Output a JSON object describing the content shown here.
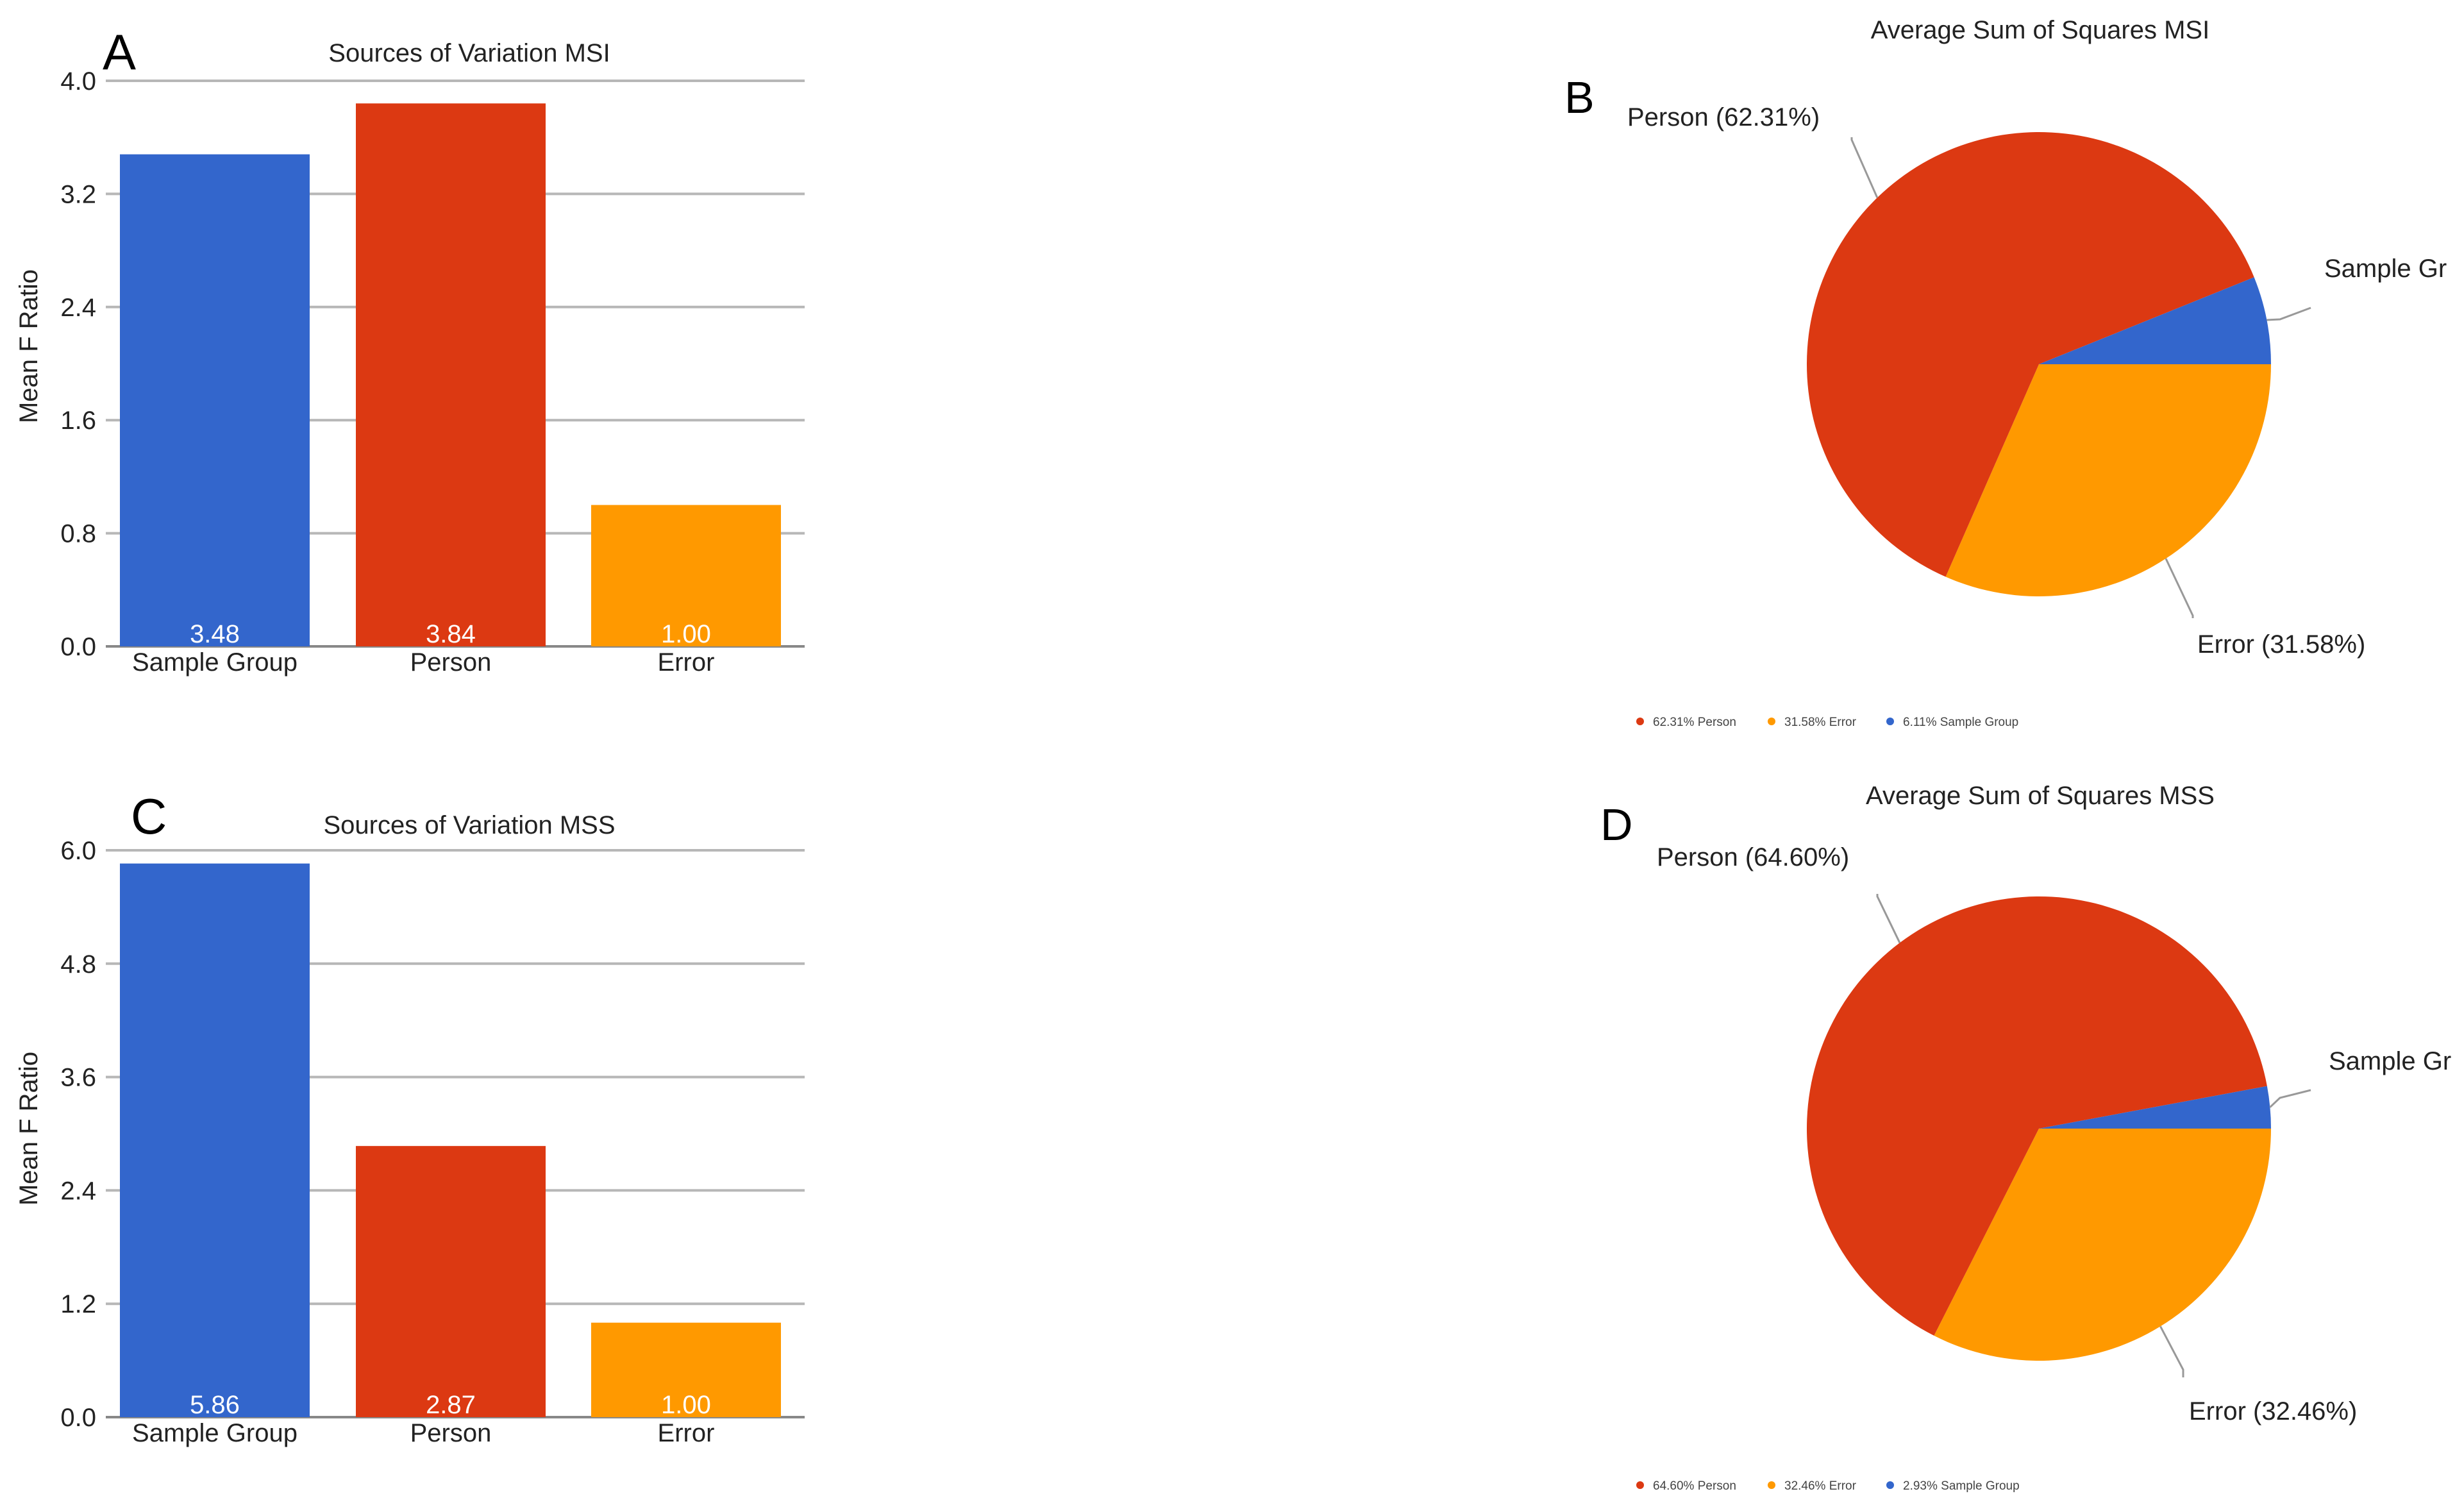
{
  "colors": {
    "sample_group": "#3366cc",
    "person": "#dc3912",
    "error": "#ff9900",
    "grid": "#b7b7b7",
    "axis_text": "#222222",
    "bar_label_text": "#ffffff",
    "leader_line": "#999999"
  },
  "chart_data": [
    {
      "panel": "A",
      "type": "bar",
      "title": "Sources of Variation MSI",
      "ylabel": "Mean F Ratio",
      "xlabel": "",
      "categories": [
        "Sample Group",
        "Person",
        "Error"
      ],
      "values": [
        3.48,
        3.84,
        1.0
      ],
      "value_labels": [
        "3.48",
        "3.84",
        "1.00"
      ],
      "ylim": [
        0,
        4.0
      ],
      "yticks": [
        "0.0",
        "0.8",
        "1.6",
        "2.4",
        "3.2",
        "4.0"
      ],
      "grid": true
    },
    {
      "panel": "B",
      "type": "pie",
      "title": "Average Sum of Squares MSI",
      "slices": [
        {
          "name": "Person",
          "value": 62.31,
          "callout": "Person  (62.31%)",
          "legend": "62.31% Person"
        },
        {
          "name": "Error",
          "value": 31.58,
          "callout": "Error  (31.58%)",
          "legend": "31.58% Error"
        },
        {
          "name": "Sample Group",
          "value": 6.11,
          "callout": "Sample Gr",
          "legend": "6.11% Sample Group"
        }
      ],
      "legend_position": "bottom"
    },
    {
      "panel": "C",
      "type": "bar",
      "title": "Sources of Variation MSS",
      "ylabel": "Mean F Ratio",
      "xlabel": "",
      "categories": [
        "Sample Group",
        "Person",
        "Error"
      ],
      "values": [
        5.86,
        2.87,
        1.0
      ],
      "value_labels": [
        "5.86",
        "2.87",
        "1.00"
      ],
      "ylim": [
        0,
        6.0
      ],
      "yticks": [
        "0.0",
        "1.2",
        "2.4",
        "3.6",
        "4.8",
        "6.0"
      ],
      "grid": true
    },
    {
      "panel": "D",
      "type": "pie",
      "title": "Average Sum of Squares MSS",
      "slices": [
        {
          "name": "Person",
          "value": 64.6,
          "callout": "Person  (64.60%)",
          "legend": "64.60% Person"
        },
        {
          "name": "Error",
          "value": 32.46,
          "callout": "Error  (32.46%)",
          "legend": "32.46% Error"
        },
        {
          "name": "Sample Group",
          "value": 2.93,
          "callout": "Sample Gr",
          "legend": "2.93% Sample Group"
        }
      ],
      "legend_position": "bottom"
    }
  ]
}
